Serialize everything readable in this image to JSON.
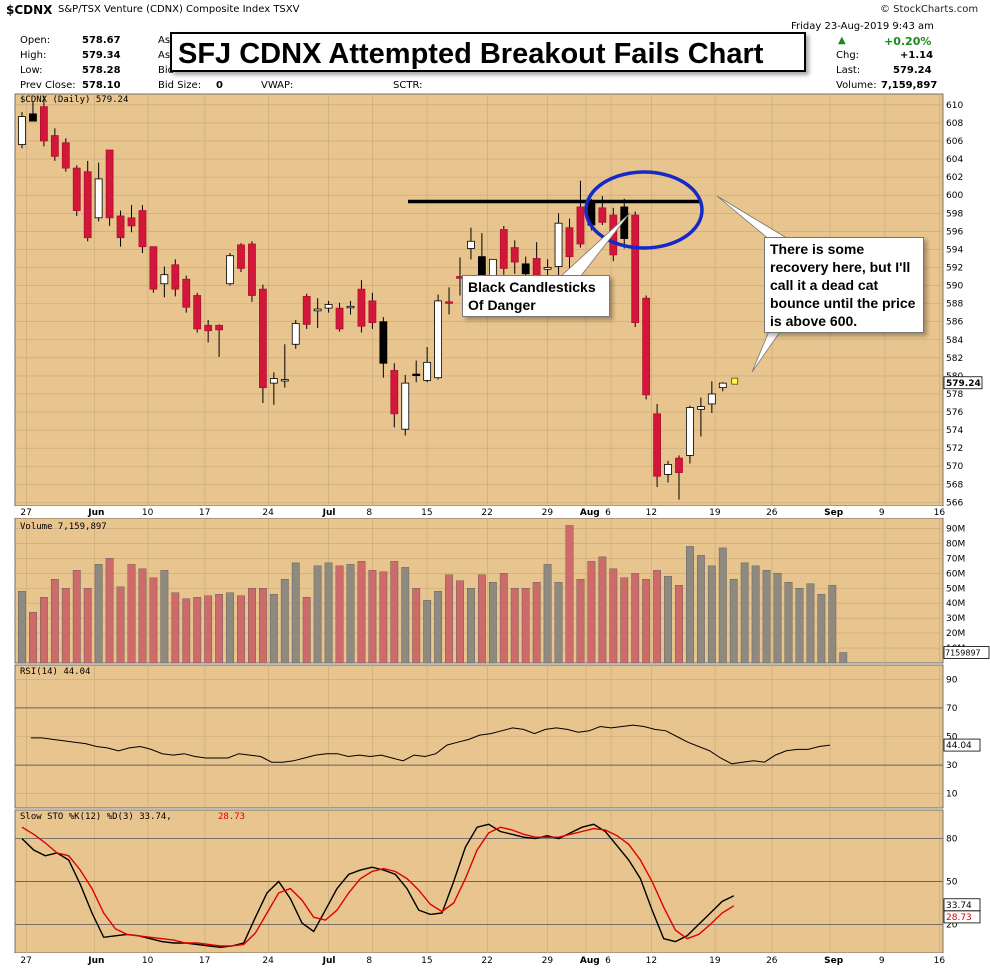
{
  "header": {
    "symbol": "$CDNX",
    "name": "S&P/TSX Venture (CDNX) Composite Index  TSXV",
    "watermark": "© StockCharts.com",
    "date": "Friday   23-Aug-2019  9:43 am",
    "change_pct": "+0.20%",
    "chg_label": "Chg:",
    "chg_value": "+1.14",
    "last_label": "Last:",
    "last_value": "579.24",
    "volume_label": "Volume:",
    "volume_value": "7,159,897",
    "open_label": "Open:",
    "open_value": "578.67",
    "high_label": "High:",
    "high_value": "579.34",
    "low_label": "Low:",
    "low_value": "578.28",
    "prev_label": "Prev Close:",
    "prev_value": "578.10",
    "ask_label": "As",
    "ask2_label": "As",
    "bid_label": "Bid",
    "bid_size_label": "Bid Size:",
    "bid_size_value": "0",
    "vwap_label": "VWAP:",
    "sctr_label": "SCTR:"
  },
  "title": "SFJ CDNX Attempted Breakout Fails Chart",
  "annotations": {
    "black_candles": "Black Candlesticks Of Danger",
    "recovery": "There is some recovery here, but I'll call it a dead cat bounce until the price is above 600."
  },
  "colors": {
    "background": "#e8c48e",
    "up_fill": "#ffffff",
    "down_fill": "#d2173a",
    "black_fill": "#000000",
    "volume_up": "#8f8a80",
    "volume_down": "#cd6b6b",
    "ellipse": "#1429c8",
    "stoch_d": "#e00000"
  },
  "chart_data": [
    {
      "type": "candlestick",
      "panel_label": "$CDNX (Daily) 579.24",
      "last_label": "579.24",
      "ylim": [
        565,
        611
      ],
      "y_ticks": [
        566,
        568,
        570,
        572,
        574,
        576,
        578,
        580,
        582,
        584,
        586,
        588,
        590,
        592,
        594,
        596,
        598,
        600,
        602,
        604,
        606,
        608,
        610
      ],
      "x_tick_labels": [
        "27",
        "Jun",
        "10",
        "17",
        "24",
        "Jul",
        "8",
        "15",
        "22",
        "29",
        "Aug",
        "6",
        "12",
        "19",
        "26",
        "Sep",
        "9",
        "16"
      ],
      "resistance_line": 599.3,
      "candles": [
        {
          "o": 605.6,
          "h": 609.2,
          "l": 605.2,
          "c": 608.7
        },
        {
          "o": 609.0,
          "h": 610.3,
          "l": 608.2,
          "c": 608.2
        },
        {
          "o": 609.8,
          "h": 611.0,
          "l": 605.4,
          "c": 606.0
        },
        {
          "o": 606.6,
          "h": 607.4,
          "l": 603.8,
          "c": 604.3
        },
        {
          "o": 605.8,
          "h": 606.3,
          "l": 602.6,
          "c": 603.0
        },
        {
          "o": 603.0,
          "h": 603.3,
          "l": 597.7,
          "c": 598.3
        },
        {
          "o": 602.6,
          "h": 603.8,
          "l": 594.9,
          "c": 595.3
        },
        {
          "o": 597.5,
          "h": 603.6,
          "l": 597.1,
          "c": 601.8
        },
        {
          "o": 605.0,
          "h": 605.0,
          "l": 596.6,
          "c": 597.5
        },
        {
          "o": 597.7,
          "h": 598.3,
          "l": 594.3,
          "c": 595.3
        },
        {
          "o": 597.5,
          "h": 598.9,
          "l": 595.9,
          "c": 596.6
        },
        {
          "o": 598.3,
          "h": 598.9,
          "l": 593.6,
          "c": 594.3
        },
        {
          "o": 594.3,
          "h": 594.3,
          "l": 589.2,
          "c": 589.6
        },
        {
          "o": 590.2,
          "h": 592.1,
          "l": 588.7,
          "c": 591.2
        },
        {
          "o": 592.3,
          "h": 592.9,
          "l": 588.8,
          "c": 589.6
        },
        {
          "o": 590.7,
          "h": 591.1,
          "l": 587.0,
          "c": 587.6
        },
        {
          "o": 588.9,
          "h": 589.2,
          "l": 584.8,
          "c": 585.2
        },
        {
          "o": 585.6,
          "h": 586.2,
          "l": 583.7,
          "c": 585.0
        },
        {
          "o": 585.6,
          "h": 585.7,
          "l": 582.1,
          "c": 585.1
        },
        {
          "o": 590.2,
          "h": 593.6,
          "l": 590.0,
          "c": 593.3
        },
        {
          "o": 594.5,
          "h": 594.7,
          "l": 591.5,
          "c": 591.9
        },
        {
          "o": 594.6,
          "h": 594.9,
          "l": 588.2,
          "c": 588.9
        },
        {
          "o": 589.6,
          "h": 590.1,
          "l": 577.0,
          "c": 578.7
        },
        {
          "o": 579.2,
          "h": 580.4,
          "l": 576.8,
          "c": 579.7
        },
        {
          "o": 579.6,
          "h": 583.5,
          "l": 578.7,
          "c": 579.6
        },
        {
          "o": 583.5,
          "h": 586.2,
          "l": 583.0,
          "c": 585.8
        },
        {
          "o": 588.8,
          "h": 589.1,
          "l": 585.2,
          "c": 585.7
        },
        {
          "o": 587.2,
          "h": 588.6,
          "l": 585.3,
          "c": 587.4
        },
        {
          "o": 587.5,
          "h": 588.3,
          "l": 587.0,
          "c": 587.9
        },
        {
          "o": 587.5,
          "h": 588.1,
          "l": 584.9,
          "c": 585.2
        },
        {
          "o": 587.6,
          "h": 588.3,
          "l": 586.8,
          "c": 587.7
        },
        {
          "o": 589.6,
          "h": 590.6,
          "l": 584.8,
          "c": 585.5
        },
        {
          "o": 588.3,
          "h": 589.2,
          "l": 585.2,
          "c": 585.9
        },
        {
          "o": 586.0,
          "h": 586.5,
          "l": 579.8,
          "c": 581.4
        },
        {
          "o": 580.6,
          "h": 581.4,
          "l": 574.3,
          "c": 575.8
        },
        {
          "o": 574.1,
          "h": 580.1,
          "l": 573.4,
          "c": 579.2
        },
        {
          "o": 580.2,
          "h": 581.7,
          "l": 579.3,
          "c": 580.1
        },
        {
          "o": 579.5,
          "h": 583.2,
          "l": 579.3,
          "c": 581.5
        },
        {
          "o": 579.8,
          "h": 589.0,
          "l": 579.6,
          "c": 588.3
        },
        {
          "o": 588.2,
          "h": 589.8,
          "l": 586.8,
          "c": 588.1
        },
        {
          "o": 591.0,
          "h": 593.1,
          "l": 588.9,
          "c": 590.8
        },
        {
          "o": 594.1,
          "h": 596.4,
          "l": 592.9,
          "c": 594.9
        },
        {
          "o": 593.2,
          "h": 595.8,
          "l": 588.9,
          "c": 590.9
        },
        {
          "o": 589.4,
          "h": 592.7,
          "l": 588.8,
          "c": 592.9
        },
        {
          "o": 596.2,
          "h": 596.6,
          "l": 591.2,
          "c": 591.9
        },
        {
          "o": 594.2,
          "h": 595.0,
          "l": 591.3,
          "c": 592.6
        },
        {
          "o": 592.4,
          "h": 593.2,
          "l": 590.6,
          "c": 591.3
        },
        {
          "o": 593.0,
          "h": 594.8,
          "l": 589.8,
          "c": 591.1
        },
        {
          "o": 591.8,
          "h": 592.9,
          "l": 589.9,
          "c": 592.0
        },
        {
          "o": 592.1,
          "h": 598.0,
          "l": 590.6,
          "c": 596.9
        },
        {
          "o": 596.4,
          "h": 597.4,
          "l": 591.9,
          "c": 593.2
        },
        {
          "o": 598.7,
          "h": 601.6,
          "l": 594.2,
          "c": 594.6
        },
        {
          "o": 599.4,
          "h": 599.6,
          "l": 596.1,
          "c": 596.7
        },
        {
          "o": 598.6,
          "h": 599.9,
          "l": 596.7,
          "c": 597.0
        },
        {
          "o": 597.8,
          "h": 598.6,
          "l": 592.7,
          "c": 593.4
        },
        {
          "o": 598.7,
          "h": 599.6,
          "l": 594.1,
          "c": 595.2
        },
        {
          "o": 597.8,
          "h": 598.2,
          "l": 585.4,
          "c": 585.9
        },
        {
          "o": 588.6,
          "h": 588.9,
          "l": 577.4,
          "c": 577.9
        },
        {
          "o": 575.8,
          "h": 576.9,
          "l": 567.7,
          "c": 568.9
        },
        {
          "o": 569.1,
          "h": 570.6,
          "l": 568.2,
          "c": 570.2
        },
        {
          "o": 570.9,
          "h": 571.2,
          "l": 566.3,
          "c": 569.3
        },
        {
          "o": 571.2,
          "h": 576.7,
          "l": 570.3,
          "c": 576.5
        },
        {
          "o": 576.3,
          "h": 577.6,
          "l": 573.3,
          "c": 576.6
        },
        {
          "o": 576.9,
          "h": 579.4,
          "l": 575.9,
          "c": 578.0
        },
        {
          "o": 578.7,
          "h": 579.3,
          "l": 578.3,
          "c": 579.2
        }
      ]
    },
    {
      "type": "bar",
      "panel_label": "Volume 7,159,897",
      "last_label": "7159897",
      "y_ticks": [
        "10M",
        "20M",
        "30M",
        "40M",
        "50M",
        "60M",
        "70M",
        "80M",
        "90M"
      ],
      "unit": "M",
      "values": [
        48,
        34,
        44,
        56,
        50,
        62,
        50,
        66,
        70,
        51,
        66,
        63,
        57,
        62,
        47,
        43,
        44,
        45,
        46,
        47,
        45,
        50,
        50,
        46,
        56,
        67,
        44,
        65,
        67,
        65,
        66,
        68,
        62,
        61,
        68,
        64,
        50,
        42,
        48,
        59,
        55,
        50,
        59,
        54,
        60,
        50,
        50,
        54,
        66,
        54,
        92,
        56,
        68,
        71,
        63,
        57,
        60,
        56,
        62,
        58,
        52,
        78,
        72,
        65,
        77,
        56,
        67,
        65,
        62,
        60,
        54,
        50,
        53,
        46,
        52,
        7
      ]
    },
    {
      "type": "line",
      "panel_label": "RSI(14) 44.04",
      "last_label": "44.04",
      "y_ticks": [
        10,
        30,
        50,
        70,
        90
      ],
      "ylim": [
        0,
        100
      ],
      "values": [
        49,
        49,
        48,
        47,
        46,
        45,
        43,
        42,
        40,
        42,
        43,
        41,
        38,
        37,
        38,
        36,
        35,
        35,
        35,
        38,
        37,
        36,
        32,
        32,
        33,
        35,
        37,
        38,
        38,
        36,
        37,
        36,
        37,
        35,
        33,
        37,
        36,
        38,
        44,
        46,
        48,
        51,
        52,
        54,
        56,
        55,
        52,
        55,
        56,
        55,
        53,
        54,
        57,
        56,
        57,
        58,
        57,
        55,
        54,
        50,
        46,
        43,
        40,
        35,
        31,
        32,
        33,
        32,
        37,
        40,
        41,
        41,
        43,
        44
      ]
    },
    {
      "type": "line",
      "panel_label": "Slow STO %K(12) %D(3) 33.74, 28.73",
      "k_label": "33.74",
      "d_label": "28.73",
      "y_ticks": [
        20,
        50,
        80
      ],
      "ylim": [
        0,
        100
      ],
      "series": [
        {
          "name": "%K",
          "values": [
            80,
            72,
            68,
            70,
            65,
            48,
            28,
            11,
            12,
            13,
            12,
            10,
            8,
            7,
            7,
            6,
            5,
            4,
            5,
            7,
            25,
            42,
            50,
            38,
            21,
            15,
            30,
            45,
            55,
            58,
            60,
            58,
            55,
            45,
            30,
            27,
            28,
            50,
            74,
            88,
            90,
            85,
            83,
            81,
            80,
            82,
            80,
            84,
            88,
            90,
            85,
            75,
            65,
            52,
            30,
            10,
            8,
            12,
            20,
            28,
            36,
            40
          ]
        },
        {
          "name": "%D",
          "values": [
            88,
            83,
            77,
            70,
            68,
            58,
            45,
            28,
            17,
            13,
            12,
            11,
            10,
            9,
            7,
            7,
            6,
            5,
            5,
            6,
            14,
            28,
            42,
            45,
            37,
            25,
            23,
            30,
            42,
            52,
            57,
            59,
            57,
            52,
            44,
            34,
            29,
            35,
            52,
            72,
            84,
            88,
            86,
            83,
            81,
            81,
            81,
            83,
            85,
            87,
            86,
            82,
            76,
            65,
            50,
            32,
            16,
            10,
            13,
            20,
            28,
            33
          ]
        }
      ]
    }
  ]
}
